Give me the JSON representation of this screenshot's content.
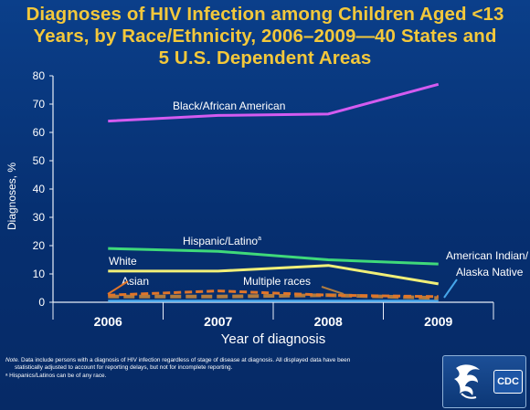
{
  "title_lines": [
    "Diagnoses of HIV Infection among Children Aged <13",
    "Years, by Race/Ethnicity, 2006–2009—40 States and",
    "5 U.S. Dependent Areas"
  ],
  "note": {
    "prefix": "Note.",
    "line1": " Data include persons with a diagnosis of HIV infection regardless of stage of disease at diagnosis. All displayed data have been",
    "line2": "statistically adjusted to account for  reporting delays, but not for incomplete reporting.",
    "footnote": "ᵃ Hispanics/Latinos can be of any race."
  },
  "logo": {
    "text": "CDC"
  },
  "chart_data": {
    "type": "line",
    "x": [
      "2006",
      "2007",
      "2008",
      "2009"
    ],
    "xlabel": "Year of diagnosis",
    "ylabel": "Diagnoses, %",
    "ylim": [
      0,
      80
    ],
    "yticks": [
      0,
      10,
      20,
      30,
      40,
      50,
      60,
      70,
      80
    ],
    "grid": false,
    "series": [
      {
        "name": "Black/African American",
        "label_sup": "",
        "values": [
          64,
          66,
          66.5,
          77
        ],
        "color": "#d35bf0",
        "dash": "",
        "width": 3
      },
      {
        "name": "Hispanic/Latino",
        "label_sup": "a",
        "values": [
          19,
          18,
          15,
          13.5
        ],
        "color": "#3fd97a",
        "dash": "",
        "width": 3
      },
      {
        "name": "White",
        "label_sup": "",
        "values": [
          11,
          11,
          13,
          6.5
        ],
        "color": "#f1ef78",
        "dash": "",
        "width": 3
      },
      {
        "name": "Asian",
        "label_sup": "",
        "values": [
          2.5,
          4,
          2.5,
          2
        ],
        "color": "#e0752a",
        "dash": "8,4",
        "width": 3
      },
      {
        "name": "Multiple races",
        "label_sup": "",
        "values": [
          2,
          2,
          2.5,
          1.5
        ],
        "color": "#b07c40",
        "dash": "12,5",
        "width": 4
      },
      {
        "name": "American Indian/Alaska Native",
        "label_sup": "",
        "values": [
          0.5,
          0.5,
          0.5,
          0.5
        ],
        "color": "#46a6ea",
        "dash": "",
        "width": 2.5
      }
    ],
    "annotations": [
      {
        "text": "Black/African American",
        "series": 0
      },
      {
        "text": "Hispanic/Latino",
        "series": 1
      },
      {
        "text": "White",
        "series": 2
      },
      {
        "text": "Asian",
        "series": 3
      },
      {
        "text": "Multiple races",
        "series": 4
      },
      {
        "text": "American Indian/",
        "series": 5
      },
      {
        "text": "Alaska Native",
        "series": 5
      }
    ]
  }
}
